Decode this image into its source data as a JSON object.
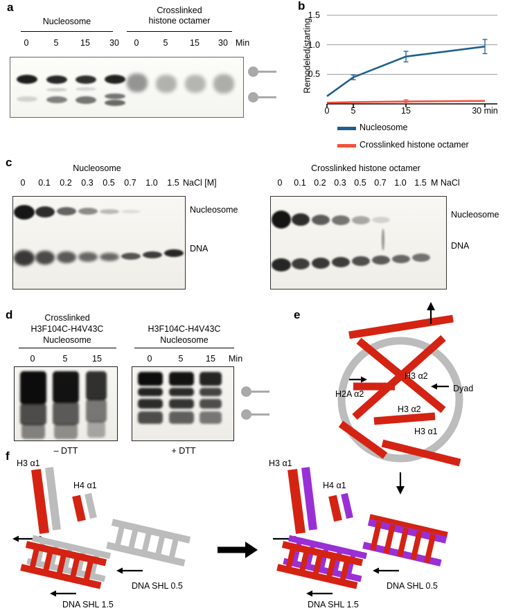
{
  "panel_labels": {
    "a": "a",
    "b": "b",
    "c": "c",
    "d": "d",
    "e": "e",
    "f": "f"
  },
  "panel_a": {
    "group1": "Nucleosome",
    "group2_line1": "Crosslinked",
    "group2_line2": "histone octamer",
    "timepoints": [
      "0",
      "5",
      "15",
      "30",
      "0",
      "5",
      "15",
      "30"
    ],
    "time_unit": "Min"
  },
  "panel_c": {
    "left": {
      "title": "Nucleosome",
      "concs": [
        "0",
        "0.1",
        "0.2",
        "0.3",
        "0.5",
        "0.7",
        "1.0",
        "1.5"
      ],
      "unit": "NaCl [M]",
      "band1": "Nucleosome",
      "band2": "DNA"
    },
    "right": {
      "title": "Crosslinked histone octamer",
      "concs": [
        "0",
        "0.1",
        "0.2",
        "0.3",
        "0.5",
        "0.7",
        "1.0",
        "1.5"
      ],
      "unit": "M NaCl",
      "band1": "Nucleosome",
      "band2": "DNA"
    }
  },
  "panel_d": {
    "left": {
      "title1": "Crosslinked",
      "title2": "H3F104C-H4V43C",
      "title3": "Nucleosome",
      "times": [
        "0",
        "5",
        "15"
      ],
      "condition": "– DTT"
    },
    "right": {
      "title1": "H3F104C-H4V43C",
      "title2": "Nucleosome",
      "times": [
        "0",
        "5",
        "15"
      ],
      "time_unit": "Min",
      "condition": "+ DTT"
    }
  },
  "panel_e": {
    "h2a_a2": "H2A α2",
    "h3_a2_upper": "H3 α2",
    "h3_a2_lower": "H3 α2",
    "h3_a1": "H3 α1",
    "dyad": "Dyad"
  },
  "panel_f": {
    "left": {
      "h3_a1": "H3 α1",
      "h4_a1": "H4 α1",
      "dna_shl_05": "DNA SHL 0.5",
      "dna_shl_15": "DNA SHL 1.5"
    },
    "right": {
      "h3_a1": "H3 α1",
      "h4_a1": "H4 α1",
      "dna_shl_05": "DNA SHL 0.5",
      "dna_shl_15": "DNA SHL 1.5"
    }
  },
  "chart_data": {
    "type": "line",
    "x": [
      0,
      5,
      15,
      30
    ],
    "xlim": [
      0,
      30
    ],
    "ylim": [
      0,
      1.5
    ],
    "yticks": [
      "0.5",
      "1.0",
      "1.5"
    ],
    "xtick_labels": [
      "0",
      "5",
      "15",
      "30 min"
    ],
    "ylabel": "Remodeled/starting",
    "grid": "horizontal",
    "legend_position": "below",
    "series": [
      {
        "name": "Nucleosome",
        "color": "#1e5f8e",
        "values": [
          0.13,
          0.45,
          0.8,
          0.97
        ],
        "errors": [
          0.02,
          0.04,
          0.09,
          0.12
        ]
      },
      {
        "name": "Crosslinked histone octamer",
        "color": "#f4503c",
        "values": [
          0.02,
          0.03,
          0.04,
          0.05
        ],
        "errors": [
          0.01,
          0.01,
          0.03,
          0.01
        ]
      }
    ]
  }
}
